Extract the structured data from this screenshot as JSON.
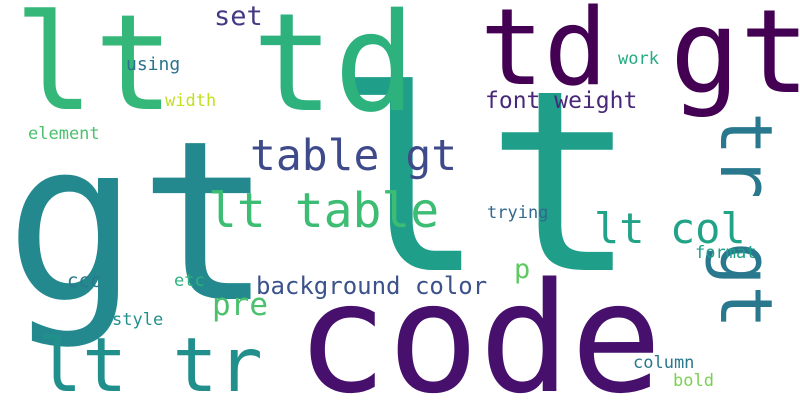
{
  "words": [
    {
      "key": "gt_big",
      "text": "gt",
      "color": "#23898e",
      "vertical": false
    },
    {
      "key": "lt_big",
      "text": "lt",
      "color": "#1f9e89",
      "vertical": false
    },
    {
      "key": "code",
      "text": "code",
      "color": "#46106c",
      "vertical": false
    },
    {
      "key": "lt_tl",
      "text": "lt",
      "color": "#35b779",
      "vertical": false
    },
    {
      "key": "td_1",
      "text": "td",
      "color": "#2db27d",
      "vertical": false
    },
    {
      "key": "td_2",
      "text": "td",
      "color": "#440154",
      "vertical": false
    },
    {
      "key": "gt_tr",
      "text": "gt",
      "color": "#440154",
      "vertical": false
    },
    {
      "key": "tr_gt",
      "text": "tr gt",
      "color": "#2a788e",
      "vertical": true
    },
    {
      "key": "lt_tr",
      "text": "lt tr",
      "color": "#21908d",
      "vertical": false
    },
    {
      "key": "table_gt",
      "text": "table gt",
      "color": "#3e4a89",
      "vertical": false
    },
    {
      "key": "lt_table",
      "text": "lt table",
      "color": "#3dbc74",
      "vertical": false
    },
    {
      "key": "lt_col",
      "text": "lt col",
      "color": "#20a386",
      "vertical": false
    },
    {
      "key": "font_weight",
      "text": "font weight",
      "color": "#482878",
      "vertical": false
    },
    {
      "key": "set",
      "text": "set",
      "color": "#443a83",
      "vertical": false
    },
    {
      "key": "background",
      "text": "background color",
      "color": "#3b528b",
      "vertical": false
    },
    {
      "key": "pre",
      "text": "pre",
      "color": "#4ac16d",
      "vertical": false
    },
    {
      "key": "p",
      "text": "p",
      "color": "#5ec962",
      "vertical": false
    },
    {
      "key": "using",
      "text": "using",
      "color": "#2c728e",
      "vertical": false
    },
    {
      "key": "width",
      "text": "width",
      "color": "#c2df23",
      "vertical": false
    },
    {
      "key": "element",
      "text": "element",
      "color": "#4ac16d",
      "vertical": false
    },
    {
      "key": "work",
      "text": "work",
      "color": "#25ab82",
      "vertical": false
    },
    {
      "key": "trying",
      "text": "trying",
      "color": "#31688e",
      "vertical": false
    },
    {
      "key": "format",
      "text": "format",
      "color": "#1f9e89",
      "vertical": false
    },
    {
      "key": "ccc",
      "text": "ccc",
      "color": "#2a788e",
      "vertical": false
    },
    {
      "key": "etc",
      "text": "etc",
      "color": "#2db27d",
      "vertical": false
    },
    {
      "key": "style",
      "text": "style",
      "color": "#21908d",
      "vertical": false
    },
    {
      "key": "column",
      "text": "column",
      "color": "#2a788e",
      "vertical": false
    },
    {
      "key": "bold",
      "text": "bold",
      "color": "#7ad151",
      "vertical": false
    }
  ]
}
